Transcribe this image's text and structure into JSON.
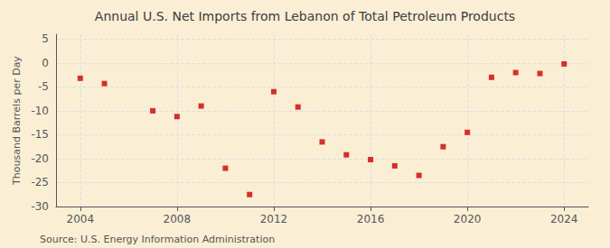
{
  "chart_data": {
    "type": "scatter",
    "title": "Annual U.S. Net Imports from Lebanon of Total Petroleum Products",
    "ylabel": "Thousand Barrels per Day",
    "annotations": [
      "Source: U.S. Energy Information Administration"
    ],
    "x": [
      2004,
      2005,
      2007,
      2008,
      2009,
      2010,
      2011,
      2012,
      2013,
      2014,
      2015,
      2016,
      2017,
      2018,
      2019,
      2020,
      2021,
      2022,
      2023,
      2024
    ],
    "values": [
      -3.2,
      -4.3,
      -10.0,
      -11.2,
      -9.0,
      -22.0,
      -27.5,
      -6.0,
      -9.2,
      -16.5,
      -19.2,
      -20.2,
      -21.5,
      -23.5,
      -17.5,
      -14.5,
      -3.0,
      -2.0,
      -2.2,
      -0.2
    ],
    "color": "#cc0000",
    "marker": "square",
    "xlim": [
      2003,
      2025
    ],
    "xticks": [
      2004,
      2008,
      2012,
      2016,
      2020,
      2024
    ],
    "ylim": [
      -30,
      6
    ],
    "yticks": [
      5,
      0,
      -5,
      -10,
      -15,
      -20,
      -25,
      -30
    ],
    "grid": true
  }
}
